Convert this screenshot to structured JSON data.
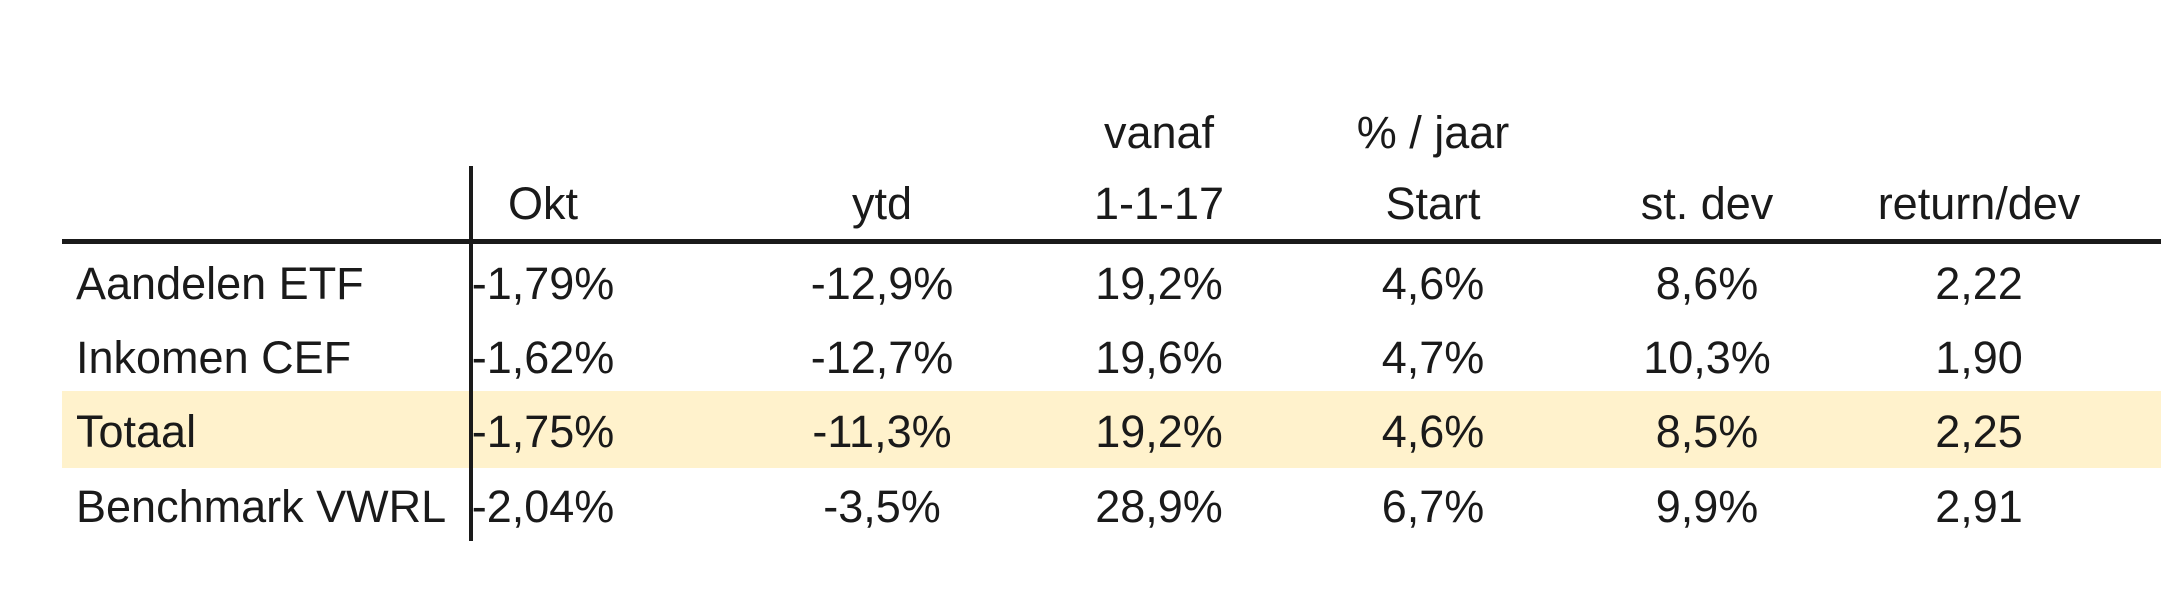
{
  "table": {
    "headers_top": [
      "",
      "",
      "vanaf",
      "% / jaar",
      "",
      ""
    ],
    "headers": [
      "Okt",
      "ytd",
      "1-1-17",
      "Start",
      "st. dev",
      "return/dev"
    ],
    "rows": [
      {
        "label": "Aandelen ETF",
        "values": [
          "-1,79%",
          "-12,9%",
          "19,2%",
          "4,6%",
          "8,6%",
          "2,22"
        ],
        "highlighted": false
      },
      {
        "label": "Inkomen CEF",
        "values": [
          "-1,62%",
          "-12,7%",
          "19,6%",
          "4,7%",
          "10,3%",
          "1,90"
        ],
        "highlighted": false
      },
      {
        "label": "Totaal",
        "values": [
          "-1,75%",
          "-11,3%",
          "19,2%",
          "4,6%",
          "8,5%",
          "2,25"
        ],
        "highlighted": true
      },
      {
        "label": "Benchmark VWRL",
        "values": [
          "-2,04%",
          "-3,5%",
          "28,9%",
          "6,7%",
          "9,9%",
          "2,91"
        ],
        "highlighted": false
      }
    ],
    "colors": {
      "highlight_row": "#fff2cc",
      "text": "#1a1a1a",
      "rules": "#1a1a1a"
    }
  }
}
